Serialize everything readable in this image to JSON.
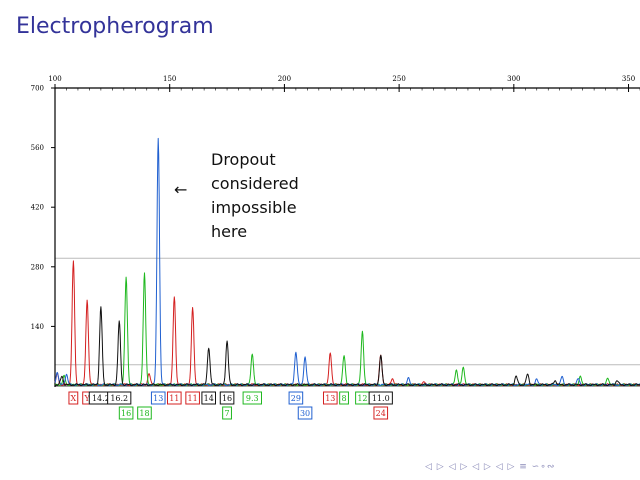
{
  "slide": {
    "title": "Electropherogram"
  },
  "annotation": {
    "text": "Dropout\nconsidered\nimpossible\nhere",
    "arrow": "←"
  },
  "nav": {
    "glyphs": "◁ ▷ ◁ ▷ ◁ ▷ ◁ ▷ ≡ ∽∘∾"
  },
  "colors": {
    "red": "#d42020",
    "green": "#1fb81f",
    "blue": "#2060d0",
    "black": "#111111",
    "title": "#333399",
    "hline": "#bbbbbb"
  },
  "chart_data": {
    "type": "line",
    "title": "",
    "xlabel": "",
    "ylabel": "",
    "xlim": [
      100,
      355
    ],
    "ylim": [
      0,
      700
    ],
    "x_ticks": [
      100,
      150,
      200,
      250,
      300,
      350
    ],
    "y_ticks": [
      140,
      280,
      420,
      560,
      700
    ],
    "reference_lines_y": [
      50,
      300
    ],
    "series": [
      {
        "color": "red",
        "peaks": [
          [
            101,
            25
          ],
          [
            108,
            290
          ],
          [
            114,
            200
          ],
          [
            141,
            25
          ],
          [
            152,
            205
          ],
          [
            160,
            180
          ],
          [
            220,
            75
          ],
          [
            242,
            70
          ],
          [
            247,
            15
          ],
          [
            261,
            8
          ]
        ]
      },
      {
        "color": "green",
        "peaks": [
          [
            104,
            20
          ],
          [
            131,
            255
          ],
          [
            139,
            263
          ],
          [
            186,
            72
          ],
          [
            226,
            68
          ],
          [
            234,
            125
          ],
          [
            275,
            35
          ],
          [
            278,
            40
          ],
          [
            329,
            18
          ],
          [
            341,
            15
          ]
        ]
      },
      {
        "color": "blue",
        "peaks": [
          [
            101,
            30
          ],
          [
            105,
            25
          ],
          [
            145,
            580
          ],
          [
            205,
            78
          ],
          [
            209,
            65
          ],
          [
            254,
            15
          ],
          [
            310,
            12
          ],
          [
            321,
            18
          ],
          [
            328,
            14
          ]
        ]
      },
      {
        "color": "black",
        "peaks": [
          [
            103,
            20
          ],
          [
            120,
            183
          ],
          [
            128,
            148
          ],
          [
            167,
            88
          ],
          [
            175,
            102
          ],
          [
            242,
            68
          ],
          [
            301,
            20
          ],
          [
            306,
            25
          ],
          [
            318,
            10
          ],
          [
            345,
            10
          ]
        ]
      }
    ],
    "allele_labels": [
      {
        "text": "X",
        "color": "red",
        "row": 1,
        "x": 108
      },
      {
        "text": "Y",
        "color": "red",
        "row": 1,
        "x": 114
      },
      {
        "text": "14.2",
        "color": "black",
        "row": 1,
        "x": 120
      },
      {
        "text": "16.2",
        "color": "black",
        "row": 1,
        "x": 128
      },
      {
        "text": "16",
        "color": "green",
        "row": 2,
        "x": 131
      },
      {
        "text": "18",
        "color": "green",
        "row": 2,
        "x": 139
      },
      {
        "text": "13",
        "color": "blue",
        "row": 1,
        "x": 145
      },
      {
        "text": "11",
        "color": "red",
        "row": 1,
        "x": 152
      },
      {
        "text": "11",
        "color": "red",
        "row": 1,
        "x": 160
      },
      {
        "text": "14",
        "color": "black",
        "row": 1,
        "x": 167
      },
      {
        "text": "16",
        "color": "black",
        "row": 1,
        "x": 175
      },
      {
        "text": "7",
        "color": "green",
        "row": 2,
        "x": 175
      },
      {
        "text": "9.3",
        "color": "green",
        "row": 1,
        "x": 186
      },
      {
        "text": "29",
        "color": "blue",
        "row": 1,
        "x": 205
      },
      {
        "text": "30",
        "color": "blue",
        "row": 2,
        "x": 209
      },
      {
        "text": "13",
        "color": "red",
        "row": 1,
        "x": 220
      },
      {
        "text": "8",
        "color": "green",
        "row": 1,
        "x": 226
      },
      {
        "text": "12",
        "color": "green",
        "row": 1,
        "x": 234
      },
      {
        "text": "11.0",
        "color": "black",
        "row": 1,
        "x": 242
      },
      {
        "text": "24",
        "color": "red",
        "row": 2,
        "x": 242
      }
    ]
  }
}
